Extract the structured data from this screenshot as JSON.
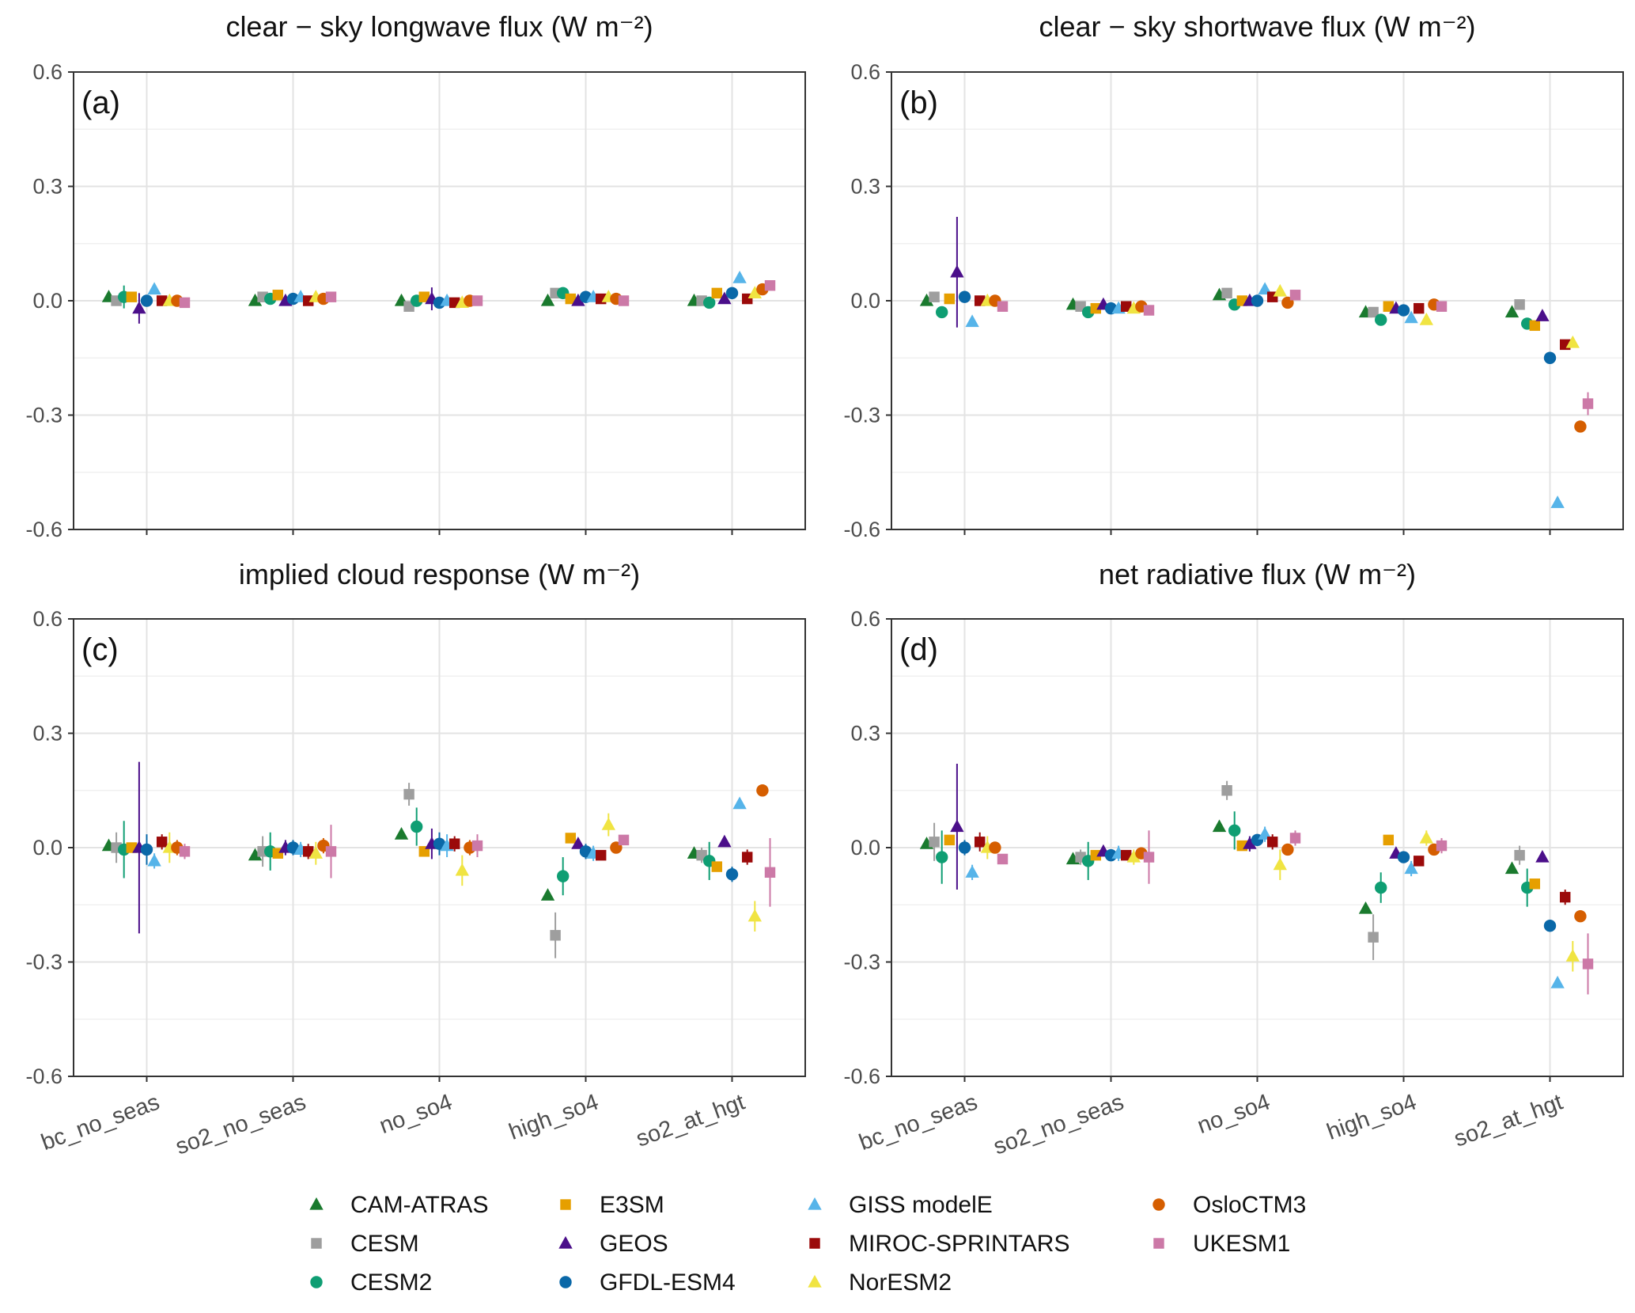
{
  "chart_data": {
    "type": "scatter",
    "categories": [
      "bc_no_seas",
      "so2_no_seas",
      "no_so4",
      "high_so4",
      "so2_at_hgt"
    ],
    "ylim": [
      -0.6,
      0.6
    ],
    "yticks": [
      "0.6",
      "0.3",
      "0.0",
      "-0.3",
      "-0.6"
    ],
    "grid": true,
    "legend_position": "bottom",
    "models": [
      {
        "name": "CAM-ATRAS",
        "color": "#1a7a2e",
        "marker": "triangle"
      },
      {
        "name": "CESM",
        "color": "#9e9e9e",
        "marker": "square"
      },
      {
        "name": "CESM2",
        "color": "#0f9e73",
        "marker": "circle"
      },
      {
        "name": "E3SM",
        "color": "#e69f00",
        "marker": "square"
      },
      {
        "name": "GEOS",
        "color": "#4b0f8a",
        "marker": "triangle"
      },
      {
        "name": "GFDL-ESM4",
        "color": "#0a68a8",
        "marker": "circle"
      },
      {
        "name": "GISS modelE",
        "color": "#56b4e9",
        "marker": "triangle"
      },
      {
        "name": "MIROC-SPRINTARS",
        "color": "#9b0a0a",
        "marker": "square"
      },
      {
        "name": "NorESM2",
        "color": "#f0e442",
        "marker": "triangle"
      },
      {
        "name": "OsloCTM3",
        "color": "#d55e00",
        "marker": "circle"
      },
      {
        "name": "UKESM1",
        "color": "#cc79a7",
        "marker": "square"
      }
    ],
    "panels": [
      {
        "tag": "(a)",
        "title": "clear − sky longwave flux (W m⁻²)",
        "values": [
          [
            0.01,
            0.0,
            0.0,
            0.0,
            0.0
          ],
          [
            0.0,
            0.01,
            -0.015,
            0.02,
            0.0
          ],
          [
            0.01,
            0.005,
            0.0,
            0.02,
            -0.005
          ],
          [
            0.01,
            0.015,
            0.01,
            0.005,
            0.02
          ],
          [
            -0.02,
            0.0,
            0.005,
            0.0,
            0.005
          ],
          [
            0.0,
            0.005,
            -0.005,
            0.01,
            0.02
          ],
          [
            0.03,
            0.01,
            0.0,
            0.01,
            0.06
          ],
          [
            0.0,
            0.0,
            -0.005,
            0.005,
            0.005
          ],
          [
            0.0,
            0.01,
            -0.005,
            0.01,
            0.02
          ],
          [
            0.0,
            0.005,
            0.0,
            0.005,
            0.03
          ],
          [
            -0.005,
            0.01,
            0.0,
            0.0,
            0.04
          ]
        ],
        "errors": [
          [
            0.01,
            0.005,
            0.005,
            0.005,
            0.005
          ],
          [
            0.005,
            0.005,
            0.005,
            0.005,
            0.005
          ],
          [
            0.03,
            0.01,
            0.01,
            0.01,
            0.01
          ],
          [
            0.005,
            0.005,
            0.005,
            0.005,
            0.005
          ],
          [
            0.04,
            0.005,
            0.03,
            0.005,
            0.005
          ],
          [
            0.01,
            0.005,
            0.005,
            0.005,
            0.005
          ],
          [
            0.01,
            0.005,
            0.005,
            0.005,
            0.01
          ],
          [
            0.01,
            0.005,
            0.005,
            0.005,
            0.005
          ],
          [
            0.01,
            0.005,
            0.005,
            0.005,
            0.01
          ],
          [
            0.01,
            0.005,
            0.005,
            0.005,
            0.005
          ],
          [
            0.01,
            0.01,
            0.01,
            0.01,
            0.01
          ]
        ]
      },
      {
        "tag": "(b)",
        "title": "clear − sky shortwave flux (W m⁻²)",
        "values": [
          [
            0.0,
            -0.01,
            0.015,
            -0.03,
            -0.03
          ],
          [
            0.01,
            -0.015,
            0.02,
            -0.03,
            -0.01
          ],
          [
            -0.03,
            -0.03,
            -0.01,
            -0.05,
            -0.06
          ],
          [
            0.005,
            -0.02,
            0.0,
            -0.015,
            -0.065
          ],
          [
            0.075,
            -0.01,
            0.0,
            -0.02,
            -0.04
          ],
          [
            0.01,
            -0.02,
            0.0,
            -0.025,
            -0.15
          ],
          [
            -0.055,
            -0.02,
            0.03,
            -0.045,
            -0.53
          ],
          [
            0.0,
            -0.015,
            0.01,
            -0.02,
            -0.115
          ],
          [
            0.0,
            -0.02,
            0.025,
            -0.05,
            -0.11
          ],
          [
            0.0,
            -0.015,
            -0.005,
            -0.01,
            -0.33
          ],
          [
            -0.015,
            -0.025,
            0.015,
            -0.015,
            -0.27
          ]
        ],
        "errors": [
          [
            0.005,
            0.005,
            0.005,
            0.005,
            0.005
          ],
          [
            0.005,
            0.005,
            0.005,
            0.005,
            0.005
          ],
          [
            0.015,
            0.01,
            0.01,
            0.015,
            0.01
          ],
          [
            0.005,
            0.005,
            0.005,
            0.005,
            0.005
          ],
          [
            0.145,
            0.005,
            0.01,
            0.005,
            0.005
          ],
          [
            0.005,
            0.005,
            0.005,
            0.005,
            0.005
          ],
          [
            0.01,
            0.005,
            0.005,
            0.005,
            0.01
          ],
          [
            0.005,
            0.005,
            0.005,
            0.005,
            0.005
          ],
          [
            0.005,
            0.005,
            0.005,
            0.005,
            0.005
          ],
          [
            0.005,
            0.005,
            0.005,
            0.005,
            0.005
          ],
          [
            0.005,
            0.005,
            0.005,
            0.005,
            0.03
          ]
        ]
      },
      {
        "tag": "(c)",
        "title": "implied cloud response (W m⁻²)",
        "values": [
          [
            0.005,
            -0.02,
            0.035,
            -0.125,
            -0.015
          ],
          [
            0.0,
            -0.01,
            0.14,
            -0.23,
            -0.02
          ],
          [
            -0.005,
            -0.01,
            0.055,
            -0.075,
            -0.035
          ],
          [
            0.0,
            -0.015,
            -0.01,
            0.025,
            -0.05
          ],
          [
            0.0,
            0.0,
            0.01,
            0.01,
            0.015
          ],
          [
            -0.005,
            0.0,
            0.01,
            -0.01,
            -0.07
          ],
          [
            -0.035,
            -0.005,
            0.005,
            -0.015,
            0.115
          ],
          [
            0.015,
            -0.01,
            0.01,
            -0.02,
            -0.025
          ],
          [
            0.0,
            -0.015,
            -0.06,
            0.06,
            -0.18
          ],
          [
            0.0,
            0.005,
            0.0,
            0.0,
            0.15
          ],
          [
            -0.01,
            -0.01,
            0.005,
            0.02,
            -0.065
          ]
        ],
        "errors": [
          [
            0.01,
            0.01,
            0.01,
            0.01,
            0.005
          ],
          [
            0.04,
            0.04,
            0.03,
            0.06,
            0.02
          ],
          [
            0.075,
            0.05,
            0.05,
            0.05,
            0.05
          ],
          [
            0.01,
            0.01,
            0.01,
            0.005,
            0.01
          ],
          [
            0.225,
            0.02,
            0.04,
            0.005,
            0.005
          ],
          [
            0.04,
            0.02,
            0.03,
            0.02,
            0.02
          ],
          [
            0.02,
            0.02,
            0.03,
            0.02,
            0.01
          ],
          [
            0.02,
            0.02,
            0.02,
            0.01,
            0.02
          ],
          [
            0.04,
            0.03,
            0.04,
            0.03,
            0.04
          ],
          [
            0.02,
            0.02,
            0.02,
            0.01,
            0.005
          ],
          [
            0.02,
            0.07,
            0.03,
            0.01,
            0.09
          ]
        ]
      },
      {
        "tag": "(d)",
        "title": "net radiative flux (W m⁻²)",
        "values": [
          [
            0.01,
            -0.03,
            0.055,
            -0.16,
            -0.055
          ],
          [
            0.015,
            -0.025,
            0.15,
            -0.235,
            -0.02
          ],
          [
            -0.025,
            -0.035,
            0.045,
            -0.105,
            -0.105
          ],
          [
            0.02,
            -0.02,
            0.005,
            0.02,
            -0.095
          ],
          [
            0.055,
            -0.01,
            0.01,
            -0.015,
            -0.025
          ],
          [
            0.0,
            -0.02,
            0.02,
            -0.025,
            -0.205
          ],
          [
            -0.065,
            -0.015,
            0.035,
            -0.055,
            -0.355
          ],
          [
            0.015,
            -0.02,
            0.015,
            -0.035,
            -0.13
          ],
          [
            0.0,
            -0.025,
            -0.045,
            0.025,
            -0.285
          ],
          [
            0.0,
            -0.015,
            -0.005,
            -0.005,
            -0.18
          ],
          [
            -0.03,
            -0.025,
            0.025,
            0.005,
            -0.305
          ]
        ],
        "errors": [
          [
            0.01,
            0.01,
            0.01,
            0.01,
            0.01
          ],
          [
            0.05,
            0.02,
            0.025,
            0.06,
            0.025
          ],
          [
            0.07,
            0.05,
            0.05,
            0.04,
            0.05
          ],
          [
            0.005,
            0.005,
            0.005,
            0.005,
            0.005
          ],
          [
            0.165,
            0.01,
            0.02,
            0.005,
            0.005
          ],
          [
            0.02,
            0.01,
            0.01,
            0.01,
            0.01
          ],
          [
            0.02,
            0.02,
            0.02,
            0.02,
            0.01
          ],
          [
            0.025,
            0.01,
            0.02,
            0.01,
            0.02
          ],
          [
            0.03,
            0.02,
            0.04,
            0.02,
            0.04
          ],
          [
            0.01,
            0.01,
            0.01,
            0.01,
            0.005
          ],
          [
            0.01,
            0.07,
            0.02,
            0.02,
            0.08
          ]
        ]
      }
    ]
  }
}
